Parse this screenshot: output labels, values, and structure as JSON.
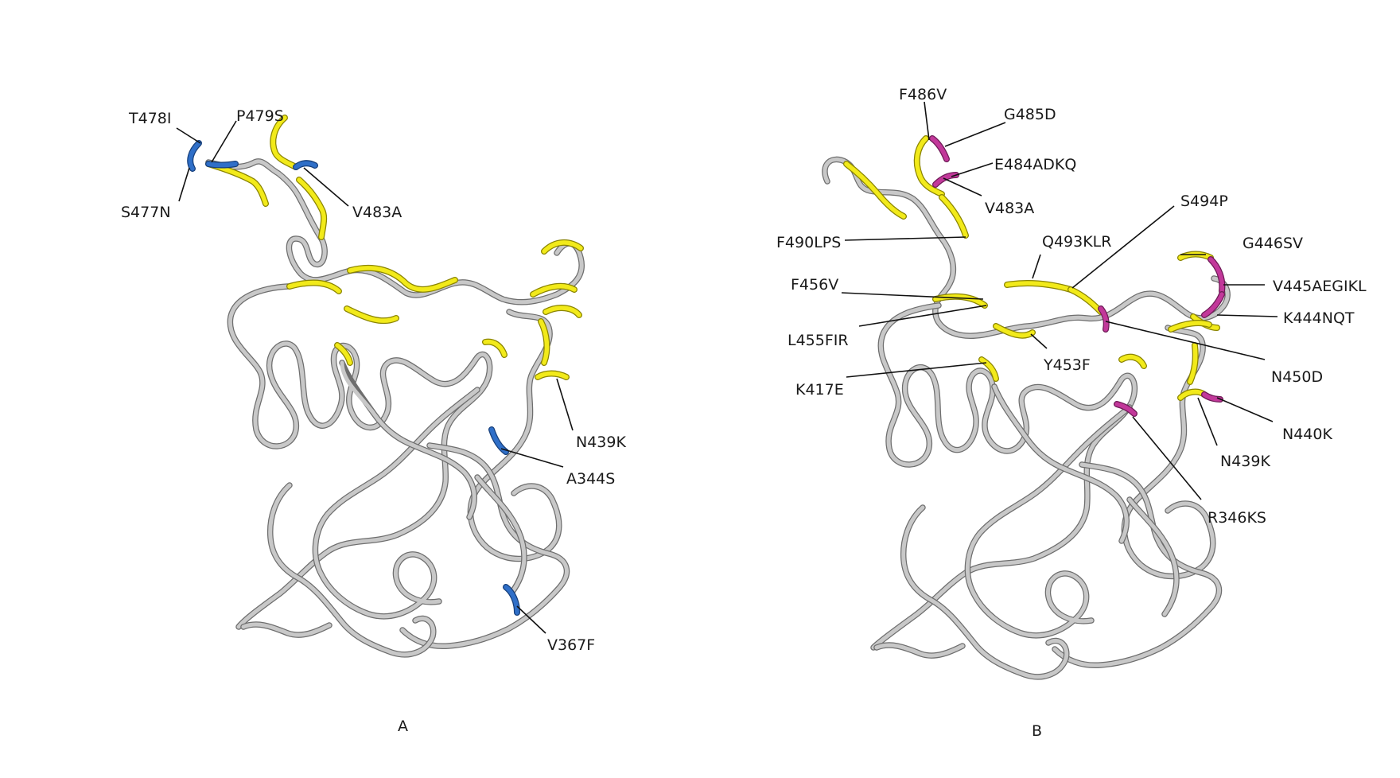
{
  "colors": {
    "backbone": "#c8c8c8",
    "backbone_edge": "#6e6e6e",
    "region": "#f2ea1a",
    "mutation_a": "#2f6fc8",
    "mutation_b": "#c2389a",
    "leader": "#111111"
  },
  "panels": [
    {
      "id": "A",
      "label": "A",
      "annotations": [
        {
          "key": "T478I",
          "text": "T478I"
        },
        {
          "key": "P479S",
          "text": "P479S"
        },
        {
          "key": "S477N",
          "text": "S477N"
        },
        {
          "key": "V483A",
          "text": "V483A"
        },
        {
          "key": "N439K",
          "text": "N439K"
        },
        {
          "key": "A344S",
          "text": "A344S"
        },
        {
          "key": "V367F",
          "text": "V367F"
        }
      ]
    },
    {
      "id": "B",
      "label": "B",
      "annotations": [
        {
          "key": "F486V",
          "text": "F486V"
        },
        {
          "key": "G485D",
          "text": "G485D"
        },
        {
          "key": "E484ADKQ",
          "text": "E484ADKQ"
        },
        {
          "key": "V483A",
          "text": "V483A"
        },
        {
          "key": "S494P",
          "text": "S494P"
        },
        {
          "key": "F490LPS",
          "text": "F490LPS"
        },
        {
          "key": "Q493KLR",
          "text": "Q493KLR"
        },
        {
          "key": "G446SV",
          "text": "G446SV"
        },
        {
          "key": "F456V",
          "text": "F456V"
        },
        {
          "key": "V445AEGIKL",
          "text": "V445AEGIKL"
        },
        {
          "key": "K444NQT",
          "text": "K444NQT"
        },
        {
          "key": "L455FIR",
          "text": "L455FIR"
        },
        {
          "key": "Y453F",
          "text": "Y453F"
        },
        {
          "key": "N450D",
          "text": "N450D"
        },
        {
          "key": "K417E",
          "text": "K417E"
        },
        {
          "key": "N440K",
          "text": "N440K"
        },
        {
          "key": "N439K",
          "text": "N439K"
        },
        {
          "key": "R346KS",
          "text": "R346KS"
        }
      ]
    }
  ]
}
